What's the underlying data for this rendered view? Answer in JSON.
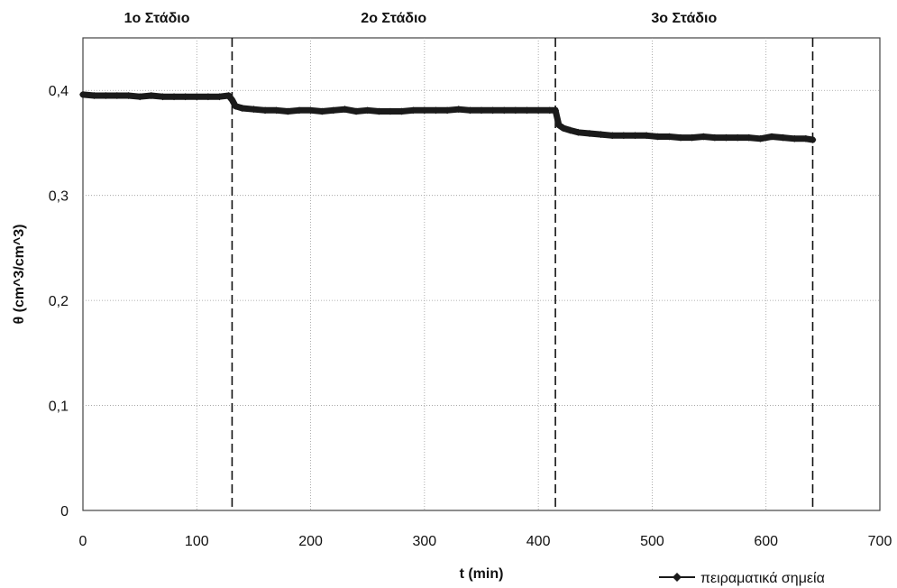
{
  "chart_data": {
    "type": "line",
    "title": "",
    "xlabel": "t (min)",
    "ylabel": "θ (cm^3/cm^3)",
    "xlim": [
      0,
      700
    ],
    "ylim": [
      0,
      0.45
    ],
    "xticks": [
      0,
      100,
      200,
      300,
      400,
      500,
      600,
      700
    ],
    "xtick_labels": [
      "0",
      "100",
      "200",
      "300",
      "400",
      "500",
      "600",
      "700"
    ],
    "yticks": [
      0,
      0.1,
      0.2,
      0.3,
      0.4
    ],
    "ytick_labels": [
      "0",
      "0,1",
      "0,2",
      "0,3",
      "0,4"
    ],
    "grid": true,
    "legend_position": "bottom-right",
    "stage_boundaries": [
      131,
      415,
      641
    ],
    "stages": [
      {
        "label": "1ο Στάδιο",
        "center": 65
      },
      {
        "label": "2ο Στάδιο",
        "center": 273
      },
      {
        "label": "3ο Στάδιο",
        "center": 528
      }
    ],
    "series": [
      {
        "name": "πειραματικά σημεία",
        "color": "#1a1a1a",
        "x": [
          0,
          10,
          20,
          30,
          40,
          50,
          60,
          70,
          80,
          90,
          100,
          110,
          120,
          128,
          131,
          134,
          140,
          150,
          160,
          170,
          180,
          190,
          200,
          210,
          220,
          230,
          240,
          250,
          260,
          270,
          280,
          290,
          300,
          310,
          320,
          330,
          340,
          350,
          360,
          370,
          380,
          390,
          400,
          410,
          415,
          418,
          422,
          428,
          435,
          445,
          455,
          465,
          475,
          485,
          495,
          505,
          515,
          525,
          535,
          545,
          555,
          565,
          575,
          585,
          595,
          605,
          615,
          625,
          635,
          641
        ],
        "y": [
          0.396,
          0.395,
          0.395,
          0.395,
          0.395,
          0.394,
          0.395,
          0.394,
          0.394,
          0.394,
          0.394,
          0.394,
          0.394,
          0.395,
          0.391,
          0.385,
          0.383,
          0.382,
          0.381,
          0.381,
          0.38,
          0.381,
          0.381,
          0.38,
          0.381,
          0.382,
          0.38,
          0.381,
          0.38,
          0.38,
          0.38,
          0.381,
          0.381,
          0.381,
          0.381,
          0.382,
          0.381,
          0.381,
          0.381,
          0.381,
          0.381,
          0.381,
          0.381,
          0.381,
          0.381,
          0.367,
          0.364,
          0.362,
          0.36,
          0.359,
          0.358,
          0.357,
          0.357,
          0.357,
          0.357,
          0.356,
          0.356,
          0.355,
          0.355,
          0.356,
          0.355,
          0.355,
          0.355,
          0.355,
          0.354,
          0.356,
          0.355,
          0.354,
          0.354,
          0.353
        ]
      }
    ]
  }
}
